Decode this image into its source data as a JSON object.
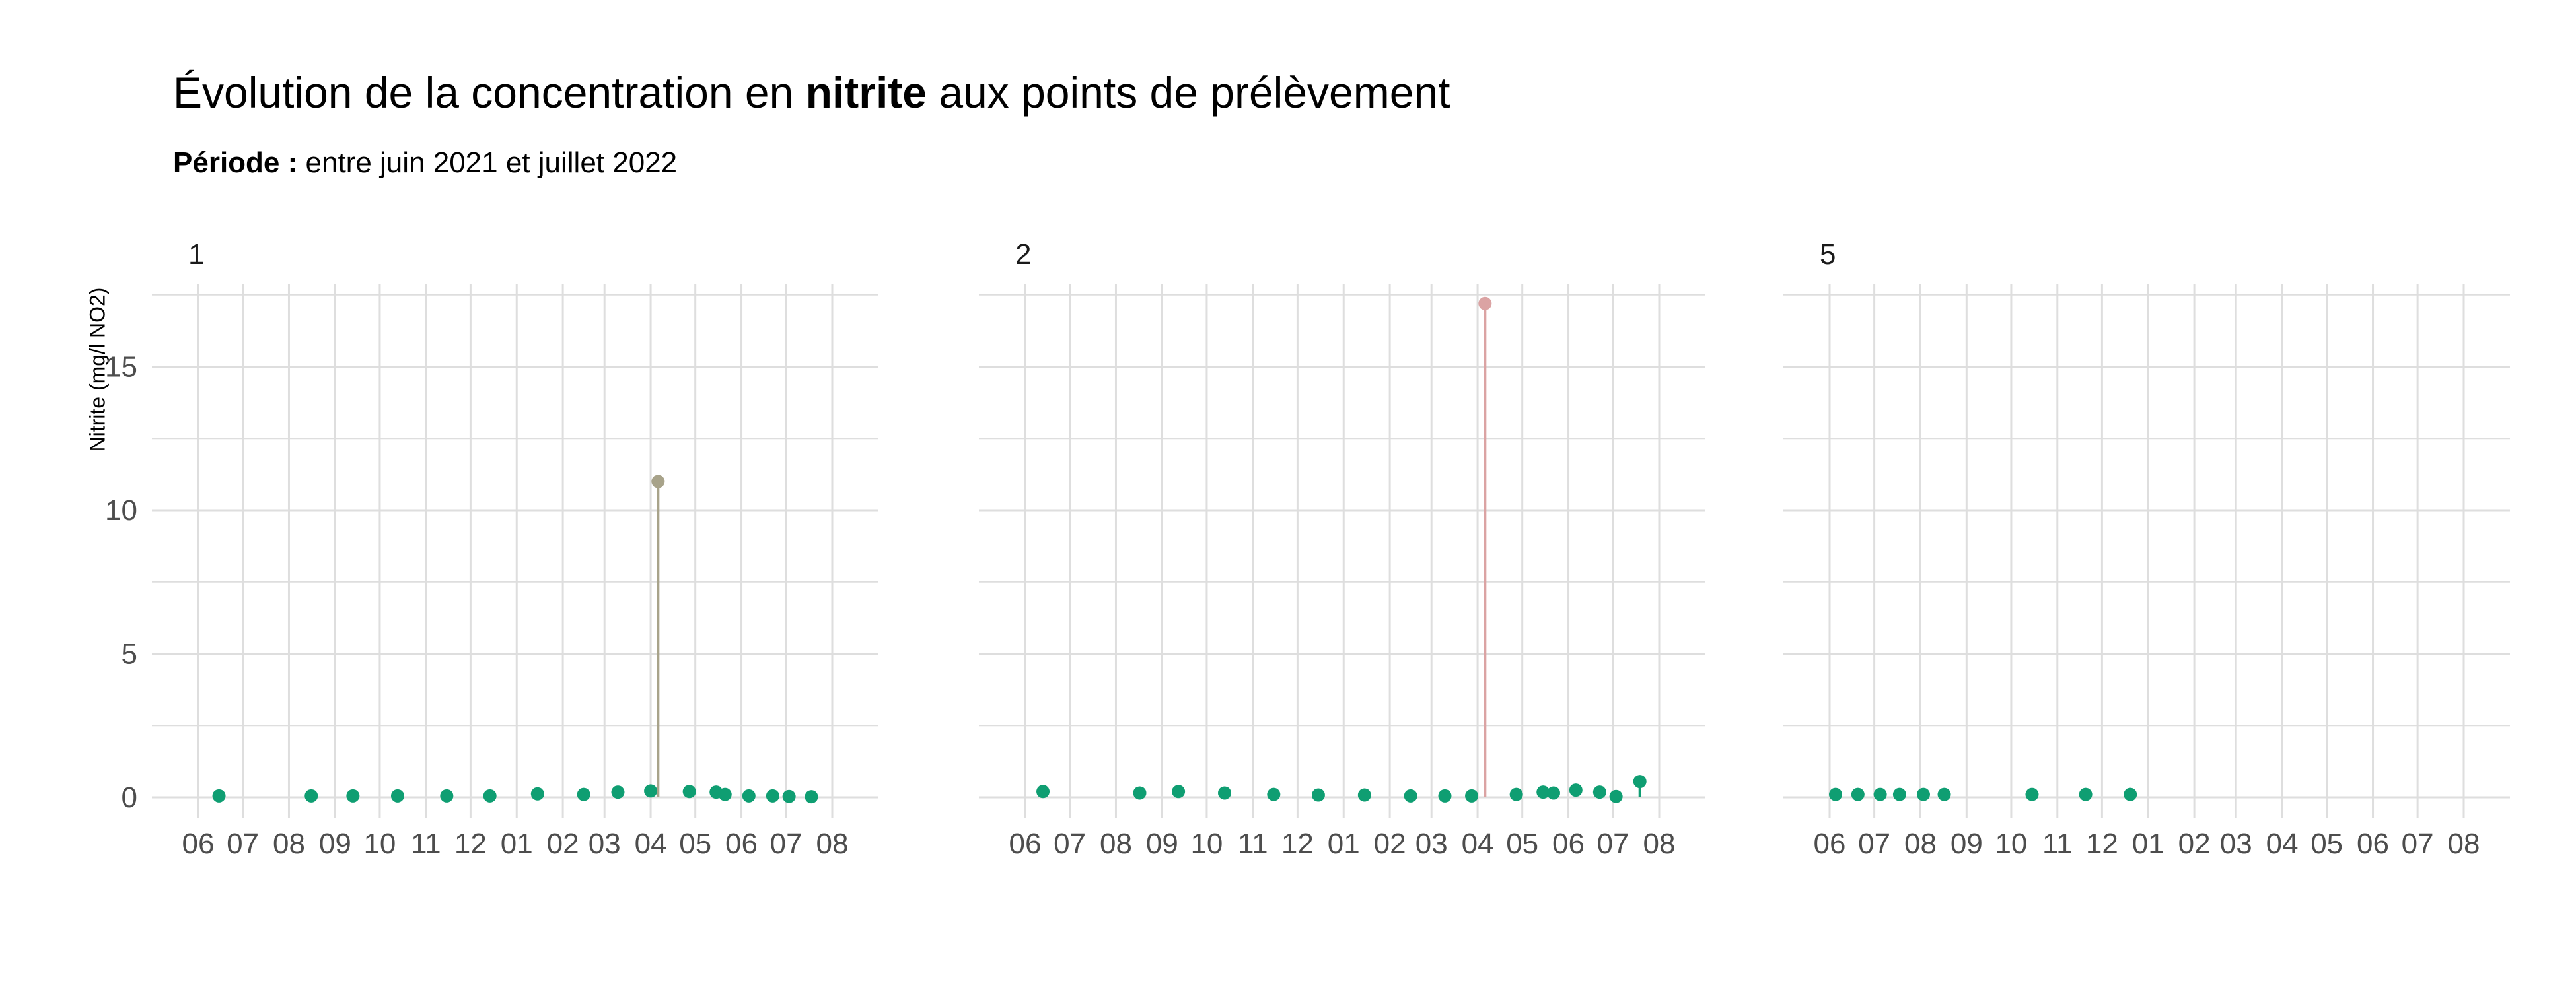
{
  "title": {
    "prefix": "Évolution de la concentration en ",
    "emphasis": "nitrite",
    "suffix": " aux points de prélèvement"
  },
  "subtitle": {
    "label": "Période :",
    "text": " entre juin 2021 et juillet 2022"
  },
  "colors": {
    "normal": "#0f9e72",
    "high": "#a8a38a",
    "very_high": "#dba3a3",
    "grid": "#dedede",
    "tick_text": "#4d4d4d"
  },
  "chart_data": {
    "type": "scatter",
    "style": "lollipop",
    "ylabel": "Nitrite (mg/l NO2)",
    "xlabel": "",
    "ylim": [
      0,
      17.5
    ],
    "y_ticks": [
      0,
      5,
      10,
      15
    ],
    "x_range": [
      "2021-06-01",
      "2022-08-01"
    ],
    "x_ticks": [
      "2021-06-01",
      "2021-07-01",
      "2021-08-01",
      "2021-09-01",
      "2021-10-01",
      "2021-11-01",
      "2021-12-01",
      "2022-01-01",
      "2022-02-01",
      "2022-03-01",
      "2022-04-01",
      "2022-05-01",
      "2022-06-01",
      "2022-07-01",
      "2022-08-01"
    ],
    "x_tick_labels": [
      "06",
      "07",
      "08",
      "09",
      "10",
      "11",
      "12",
      "01",
      "02",
      "03",
      "04",
      "05",
      "06",
      "07",
      "08"
    ],
    "grid": true,
    "legend": "none",
    "panels": [
      {
        "name": "1",
        "points": [
          {
            "x": "2021-06-15",
            "y": 0.05
          },
          {
            "x": "2021-08-16",
            "y": 0.05
          },
          {
            "x": "2021-09-13",
            "y": 0.05
          },
          {
            "x": "2021-10-13",
            "y": 0.05
          },
          {
            "x": "2021-11-15",
            "y": 0.05
          },
          {
            "x": "2021-12-14",
            "y": 0.05
          },
          {
            "x": "2022-01-15",
            "y": 0.12
          },
          {
            "x": "2022-02-15",
            "y": 0.1
          },
          {
            "x": "2022-03-10",
            "y": 0.18
          },
          {
            "x": "2022-04-01",
            "y": 0.22
          },
          {
            "x": "2022-04-06",
            "y": 11.0,
            "level": "high"
          },
          {
            "x": "2022-04-27",
            "y": 0.2
          },
          {
            "x": "2022-05-15",
            "y": 0.18
          },
          {
            "x": "2022-05-21",
            "y": 0.1
          },
          {
            "x": "2022-06-06",
            "y": 0.05
          },
          {
            "x": "2022-06-22",
            "y": 0.05
          },
          {
            "x": "2022-07-03",
            "y": 0.03
          },
          {
            "x": "2022-07-18",
            "y": 0.02
          }
        ]
      },
      {
        "name": "2",
        "points": [
          {
            "x": "2021-06-13",
            "y": 0.2
          },
          {
            "x": "2021-08-17",
            "y": 0.15
          },
          {
            "x": "2021-09-12",
            "y": 0.2
          },
          {
            "x": "2021-10-13",
            "y": 0.15
          },
          {
            "x": "2021-11-15",
            "y": 0.1
          },
          {
            "x": "2021-12-15",
            "y": 0.08
          },
          {
            "x": "2022-01-15",
            "y": 0.08
          },
          {
            "x": "2022-02-15",
            "y": 0.05
          },
          {
            "x": "2022-03-10",
            "y": 0.05
          },
          {
            "x": "2022-03-28",
            "y": 0.05
          },
          {
            "x": "2022-04-06",
            "y": 17.2,
            "level": "very_high"
          },
          {
            "x": "2022-04-27",
            "y": 0.1
          },
          {
            "x": "2022-05-15",
            "y": 0.18
          },
          {
            "x": "2022-05-22",
            "y": 0.15
          },
          {
            "x": "2022-06-06",
            "y": 0.25
          },
          {
            "x": "2022-06-22",
            "y": 0.18
          },
          {
            "x": "2022-07-03",
            "y": 0.03
          },
          {
            "x": "2022-07-19",
            "y": 0.55
          }
        ]
      },
      {
        "name": "5",
        "points": [
          {
            "x": "2021-06-05",
            "y": 0.1
          },
          {
            "x": "2021-06-20",
            "y": 0.1
          },
          {
            "x": "2021-07-05",
            "y": 0.1
          },
          {
            "x": "2021-07-18",
            "y": 0.1
          },
          {
            "x": "2021-08-03",
            "y": 0.1
          },
          {
            "x": "2021-08-17",
            "y": 0.1
          },
          {
            "x": "2021-10-15",
            "y": 0.1
          },
          {
            "x": "2021-11-20",
            "y": 0.1
          },
          {
            "x": "2021-12-20",
            "y": 0.1
          }
        ]
      }
    ]
  }
}
